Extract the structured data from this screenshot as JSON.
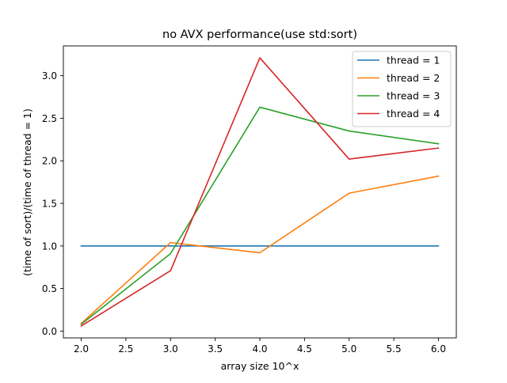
{
  "chart_data": {
    "type": "line",
    "title": "no AVX performance(use std:sort)",
    "xlabel": "array size 10^x",
    "ylabel": "(time of sort)/(time of thread = 1)",
    "x": [
      2.0,
      3.0,
      4.0,
      5.0,
      6.0
    ],
    "xlim": [
      1.8,
      6.2
    ],
    "ylim": [
      -0.08,
      3.35
    ],
    "xticks": [
      2.0,
      2.5,
      3.0,
      3.5,
      4.0,
      4.5,
      5.0,
      5.5,
      6.0
    ],
    "yticks": [
      0.0,
      0.5,
      1.0,
      1.5,
      2.0,
      2.5,
      3.0
    ],
    "xtick_labels": [
      "2.0",
      "2.5",
      "3.0",
      "3.5",
      "4.0",
      "4.5",
      "5.0",
      "5.5",
      "6.0"
    ],
    "ytick_labels": [
      "0.0",
      "0.5",
      "1.0",
      "1.5",
      "2.0",
      "2.5",
      "3.0"
    ],
    "grid": false,
    "legend_position": "top-right",
    "series": [
      {
        "name": "thread = 1",
        "color": "#1f77b4",
        "values": [
          1.0,
          1.0,
          1.0,
          1.0,
          1.0
        ]
      },
      {
        "name": "thread = 2",
        "color": "#ff7f0e",
        "values": [
          0.09,
          1.04,
          0.92,
          1.62,
          1.82
        ]
      },
      {
        "name": "thread = 3",
        "color": "#2ca02c",
        "values": [
          0.08,
          0.91,
          2.63,
          2.35,
          2.2
        ]
      },
      {
        "name": "thread = 4",
        "color": "#d62728",
        "values": [
          0.06,
          0.71,
          3.21,
          2.02,
          2.15
        ]
      }
    ]
  }
}
